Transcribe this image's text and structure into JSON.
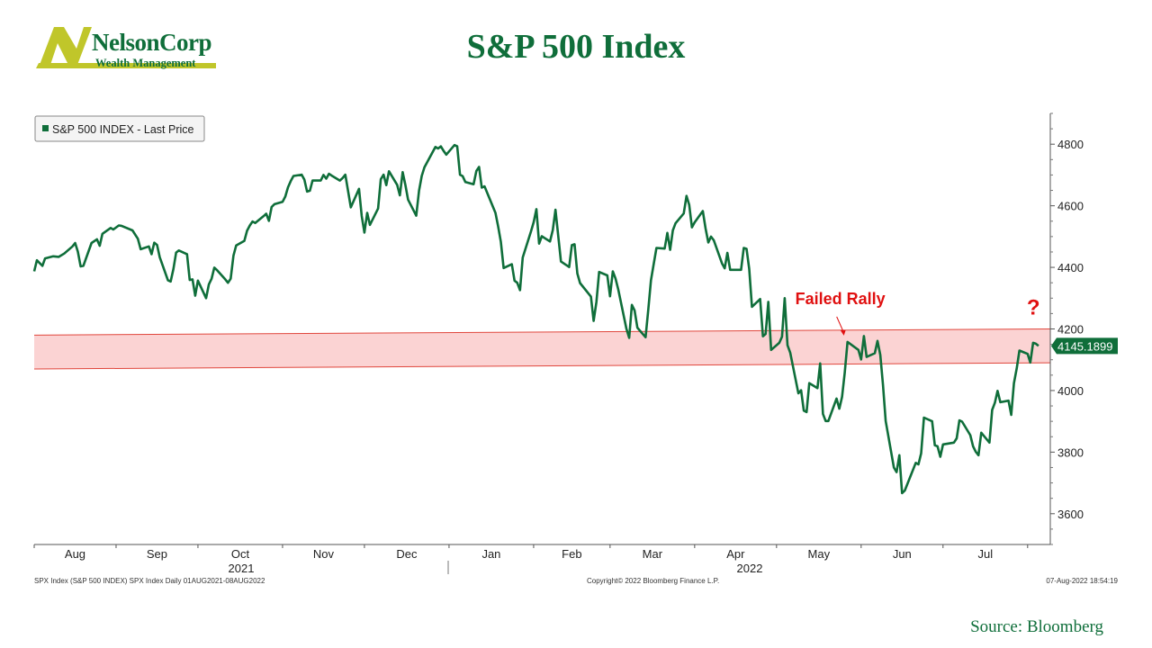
{
  "header": {
    "title": "S&P 500 Index",
    "logo": {
      "name": "NelsonCorp",
      "tagline": "Wealth Management",
      "mark": "N"
    }
  },
  "source": "Source: Bloomberg",
  "colors": {
    "title": "#0f6e3a",
    "series": "#0f6e3a",
    "band_fill": "#fbd3d3",
    "band_line": "#e0463c",
    "annotation": "#e01010",
    "logo_bar": "#c0c62a",
    "logo_text": "#0f6e3a"
  },
  "footer": {
    "left": "SPX Index (S&P 500 INDEX) SPX Index  Daily 01AUG2021-08AUG2022",
    "middle": "Copyright© 2022 Bloomberg Finance L.P.",
    "right": "07-Aug-2022 18:54:19"
  },
  "chart_data": {
    "type": "line",
    "legend": {
      "label": "S&P 500 INDEX - Last Price",
      "position": "top-left"
    },
    "x_ticks": [
      "Aug",
      "Sep",
      "Oct",
      "Nov",
      "Dec",
      "Jan",
      "Feb",
      "Mar",
      "Apr",
      "May",
      "Jun",
      "Jul"
    ],
    "year_labels": [
      "2021",
      "2022"
    ],
    "y_ticks": [
      3600,
      3800,
      4000,
      4200,
      4400,
      4600,
      4800
    ],
    "ylim": [
      3500,
      4900
    ],
    "last_price_label": "4145.1899",
    "annotations": [
      {
        "text": "Failed Rally",
        "date": "2022-05-27",
        "value": 4158
      },
      {
        "text": "?",
        "date": "2022-08-05",
        "value": 4145
      }
    ],
    "band": {
      "start": [
        "2021-08-02",
        4180,
        4070
      ],
      "end": [
        "2022-08-08",
        4200,
        4090
      ]
    },
    "series": [
      {
        "name": "S&P 500 INDEX - Last Price",
        "points": [
          [
            "2021-08-02",
            4387
          ],
          [
            "2021-08-03",
            4423
          ],
          [
            "2021-08-05",
            4405
          ],
          [
            "2021-08-06",
            4429
          ],
          [
            "2021-08-09",
            4436
          ],
          [
            "2021-08-11",
            4434
          ],
          [
            "2021-08-13",
            4445
          ],
          [
            "2021-08-16",
            4468
          ],
          [
            "2021-08-17",
            4479
          ],
          [
            "2021-08-18",
            4451
          ],
          [
            "2021-08-19",
            4403
          ],
          [
            "2021-08-20",
            4405
          ],
          [
            "2021-08-23",
            4479
          ],
          [
            "2021-08-25",
            4491
          ],
          [
            "2021-08-26",
            4470
          ],
          [
            "2021-08-27",
            4509
          ],
          [
            "2021-08-30",
            4528
          ],
          [
            "2021-08-31",
            4523
          ],
          [
            "2021-09-02",
            4536
          ],
          [
            "2021-09-03",
            4535
          ],
          [
            "2021-09-07",
            4520
          ],
          [
            "2021-09-09",
            4493
          ],
          [
            "2021-09-10",
            4459
          ],
          [
            "2021-09-13",
            4468
          ],
          [
            "2021-09-14",
            4443
          ],
          [
            "2021-09-15",
            4480
          ],
          [
            "2021-09-16",
            4473
          ],
          [
            "2021-09-17",
            4433
          ],
          [
            "2021-09-20",
            4358
          ],
          [
            "2021-09-21",
            4354
          ],
          [
            "2021-09-22",
            4395
          ],
          [
            "2021-09-23",
            4448
          ],
          [
            "2021-09-24",
            4455
          ],
          [
            "2021-09-27",
            4443
          ],
          [
            "2021-09-28",
            4359
          ],
          [
            "2021-09-29",
            4361
          ],
          [
            "2021-09-30",
            4308
          ],
          [
            "2021-10-01",
            4357
          ],
          [
            "2021-10-04",
            4300
          ],
          [
            "2021-10-05",
            4345
          ],
          [
            "2021-10-06",
            4363
          ],
          [
            "2021-10-07",
            4399
          ],
          [
            "2021-10-08",
            4391
          ],
          [
            "2021-10-11",
            4361
          ],
          [
            "2021-10-12",
            4350
          ],
          [
            "2021-10-13",
            4363
          ],
          [
            "2021-10-14",
            4438
          ],
          [
            "2021-10-15",
            4471
          ],
          [
            "2021-10-18",
            4486
          ],
          [
            "2021-10-19",
            4519
          ],
          [
            "2021-10-20",
            4536
          ],
          [
            "2021-10-21",
            4549
          ],
          [
            "2021-10-22",
            4544
          ],
          [
            "2021-10-25",
            4566
          ],
          [
            "2021-10-26",
            4574
          ],
          [
            "2021-10-27",
            4551
          ],
          [
            "2021-10-28",
            4596
          ],
          [
            "2021-10-29",
            4605
          ],
          [
            "2021-11-01",
            4613
          ],
          [
            "2021-11-02",
            4630
          ],
          [
            "2021-11-03",
            4660
          ],
          [
            "2021-11-04",
            4680
          ],
          [
            "2021-11-05",
            4697
          ],
          [
            "2021-11-08",
            4701
          ],
          [
            "2021-11-09",
            4685
          ],
          [
            "2021-11-10",
            4646
          ],
          [
            "2021-11-11",
            4649
          ],
          [
            "2021-11-12",
            4682
          ],
          [
            "2021-11-15",
            4682
          ],
          [
            "2021-11-16",
            4700
          ],
          [
            "2021-11-17",
            4688
          ],
          [
            "2021-11-18",
            4704
          ],
          [
            "2021-11-19",
            4698
          ],
          [
            "2021-11-22",
            4682
          ],
          [
            "2021-11-23",
            4690
          ],
          [
            "2021-11-24",
            4701
          ],
          [
            "2021-11-26",
            4595
          ],
          [
            "2021-11-29",
            4655
          ],
          [
            "2021-11-30",
            4567
          ],
          [
            "2021-12-01",
            4513
          ],
          [
            "2021-12-02",
            4577
          ],
          [
            "2021-12-03",
            4538
          ],
          [
            "2021-12-06",
            4591
          ],
          [
            "2021-12-07",
            4686
          ],
          [
            "2021-12-08",
            4701
          ],
          [
            "2021-12-09",
            4667
          ],
          [
            "2021-12-10",
            4712
          ],
          [
            "2021-12-13",
            4668
          ],
          [
            "2021-12-14",
            4634
          ],
          [
            "2021-12-15",
            4709
          ],
          [
            "2021-12-16",
            4668
          ],
          [
            "2021-12-17",
            4620
          ],
          [
            "2021-12-20",
            4568
          ],
          [
            "2021-12-21",
            4649
          ],
          [
            "2021-12-22",
            4697
          ],
          [
            "2021-12-23",
            4725
          ],
          [
            "2021-12-27",
            4791
          ],
          [
            "2021-12-28",
            4786
          ],
          [
            "2021-12-29",
            4793
          ],
          [
            "2021-12-30",
            4778
          ],
          [
            "2021-12-31",
            4766
          ],
          [
            "2022-01-03",
            4797
          ],
          [
            "2022-01-04",
            4793
          ],
          [
            "2022-01-05",
            4701
          ],
          [
            "2022-01-06",
            4696
          ],
          [
            "2022-01-07",
            4677
          ],
          [
            "2022-01-10",
            4670
          ],
          [
            "2022-01-11",
            4713
          ],
          [
            "2022-01-12",
            4726
          ],
          [
            "2022-01-13",
            4659
          ],
          [
            "2022-01-14",
            4663
          ],
          [
            "2022-01-18",
            4577
          ],
          [
            "2022-01-19",
            4533
          ],
          [
            "2022-01-20",
            4483
          ],
          [
            "2022-01-21",
            4398
          ],
          [
            "2022-01-24",
            4410
          ],
          [
            "2022-01-25",
            4357
          ],
          [
            "2022-01-26",
            4350
          ],
          [
            "2022-01-27",
            4326
          ],
          [
            "2022-01-28",
            4432
          ],
          [
            "2022-01-31",
            4516
          ],
          [
            "2022-02-01",
            4546
          ],
          [
            "2022-02-02",
            4589
          ],
          [
            "2022-02-03",
            4477
          ],
          [
            "2022-02-04",
            4501
          ],
          [
            "2022-02-07",
            4484
          ],
          [
            "2022-02-08",
            4521
          ],
          [
            "2022-02-09",
            4587
          ],
          [
            "2022-02-10",
            4504
          ],
          [
            "2022-02-11",
            4419
          ],
          [
            "2022-02-14",
            4401
          ],
          [
            "2022-02-15",
            4472
          ],
          [
            "2022-02-16",
            4475
          ],
          [
            "2022-02-17",
            4380
          ],
          [
            "2022-02-18",
            4349
          ],
          [
            "2022-02-22",
            4305
          ],
          [
            "2022-02-23",
            4226
          ],
          [
            "2022-02-24",
            4288
          ],
          [
            "2022-02-25",
            4385
          ],
          [
            "2022-02-28",
            4374
          ],
          [
            "2022-03-01",
            4306
          ],
          [
            "2022-03-02",
            4387
          ],
          [
            "2022-03-03",
            4364
          ],
          [
            "2022-03-04",
            4329
          ],
          [
            "2022-03-07",
            4201
          ],
          [
            "2022-03-08",
            4171
          ],
          [
            "2022-03-09",
            4278
          ],
          [
            "2022-03-10",
            4260
          ],
          [
            "2022-03-11",
            4204
          ],
          [
            "2022-03-14",
            4173
          ],
          [
            "2022-03-15",
            4262
          ],
          [
            "2022-03-16",
            4358
          ],
          [
            "2022-03-17",
            4412
          ],
          [
            "2022-03-18",
            4463
          ],
          [
            "2022-03-21",
            4461
          ],
          [
            "2022-03-22",
            4512
          ],
          [
            "2022-03-23",
            4457
          ],
          [
            "2022-03-24",
            4520
          ],
          [
            "2022-03-25",
            4543
          ],
          [
            "2022-03-28",
            4575
          ],
          [
            "2022-03-29",
            4632
          ],
          [
            "2022-03-30",
            4603
          ],
          [
            "2022-03-31",
            4530
          ],
          [
            "2022-04-01",
            4546
          ],
          [
            "2022-04-04",
            4583
          ],
          [
            "2022-04-05",
            4526
          ],
          [
            "2022-04-06",
            4481
          ],
          [
            "2022-04-07",
            4500
          ],
          [
            "2022-04-08",
            4488
          ],
          [
            "2022-04-11",
            4413
          ],
          [
            "2022-04-12",
            4397
          ],
          [
            "2022-04-13",
            4447
          ],
          [
            "2022-04-14",
            4392
          ],
          [
            "2022-04-18",
            4392
          ],
          [
            "2022-04-19",
            4463
          ],
          [
            "2022-04-20",
            4460
          ],
          [
            "2022-04-21",
            4394
          ],
          [
            "2022-04-22",
            4272
          ],
          [
            "2022-04-25",
            4297
          ],
          [
            "2022-04-26",
            4176
          ],
          [
            "2022-04-27",
            4184
          ],
          [
            "2022-04-28",
            4288
          ],
          [
            "2022-04-29",
            4132
          ],
          [
            "2022-05-02",
            4155
          ],
          [
            "2022-05-03",
            4175
          ],
          [
            "2022-05-04",
            4300
          ],
          [
            "2022-05-05",
            4147
          ],
          [
            "2022-05-06",
            4123
          ],
          [
            "2022-05-09",
            3991
          ],
          [
            "2022-05-10",
            4001
          ],
          [
            "2022-05-11",
            3935
          ],
          [
            "2022-05-12",
            3930
          ],
          [
            "2022-05-13",
            4024
          ],
          [
            "2022-05-16",
            4008
          ],
          [
            "2022-05-17",
            4088
          ],
          [
            "2022-05-18",
            3924
          ],
          [
            "2022-05-19",
            3901
          ],
          [
            "2022-05-20",
            3901
          ],
          [
            "2022-05-23",
            3974
          ],
          [
            "2022-05-24",
            3941
          ],
          [
            "2022-05-25",
            3979
          ],
          [
            "2022-05-26",
            4058
          ],
          [
            "2022-05-27",
            4158
          ],
          [
            "2022-05-31",
            4132
          ],
          [
            "2022-06-01",
            4101
          ],
          [
            "2022-06-02",
            4177
          ],
          [
            "2022-06-03",
            4109
          ],
          [
            "2022-06-06",
            4121
          ],
          [
            "2022-06-07",
            4161
          ],
          [
            "2022-06-08",
            4116
          ],
          [
            "2022-06-09",
            4018
          ],
          [
            "2022-06-10",
            3901
          ],
          [
            "2022-06-13",
            3750
          ],
          [
            "2022-06-14",
            3735
          ],
          [
            "2022-06-15",
            3790
          ],
          [
            "2022-06-16",
            3667
          ],
          [
            "2022-06-17",
            3675
          ],
          [
            "2022-06-21",
            3765
          ],
          [
            "2022-06-22",
            3760
          ],
          [
            "2022-06-23",
            3796
          ],
          [
            "2022-06-24",
            3912
          ],
          [
            "2022-06-27",
            3900
          ],
          [
            "2022-06-28",
            3822
          ],
          [
            "2022-06-29",
            3819
          ],
          [
            "2022-06-30",
            3785
          ],
          [
            "2022-07-01",
            3825
          ],
          [
            "2022-07-05",
            3831
          ],
          [
            "2022-07-06",
            3845
          ],
          [
            "2022-07-07",
            3903
          ],
          [
            "2022-07-08",
            3899
          ],
          [
            "2022-07-11",
            3855
          ],
          [
            "2022-07-12",
            3819
          ],
          [
            "2022-07-13",
            3801
          ],
          [
            "2022-07-14",
            3790
          ],
          [
            "2022-07-15",
            3863
          ],
          [
            "2022-07-18",
            3831
          ],
          [
            "2022-07-19",
            3937
          ],
          [
            "2022-07-20",
            3960
          ],
          [
            "2022-07-21",
            3999
          ],
          [
            "2022-07-22",
            3962
          ],
          [
            "2022-07-25",
            3967
          ],
          [
            "2022-07-26",
            3921
          ],
          [
            "2022-07-27",
            4024
          ],
          [
            "2022-07-28",
            4072
          ],
          [
            "2022-07-29",
            4130
          ],
          [
            "2022-08-01",
            4119
          ],
          [
            "2022-08-02",
            4091
          ],
          [
            "2022-08-03",
            4155
          ],
          [
            "2022-08-04",
            4152
          ],
          [
            "2022-08-05",
            4145
          ]
        ]
      }
    ]
  }
}
